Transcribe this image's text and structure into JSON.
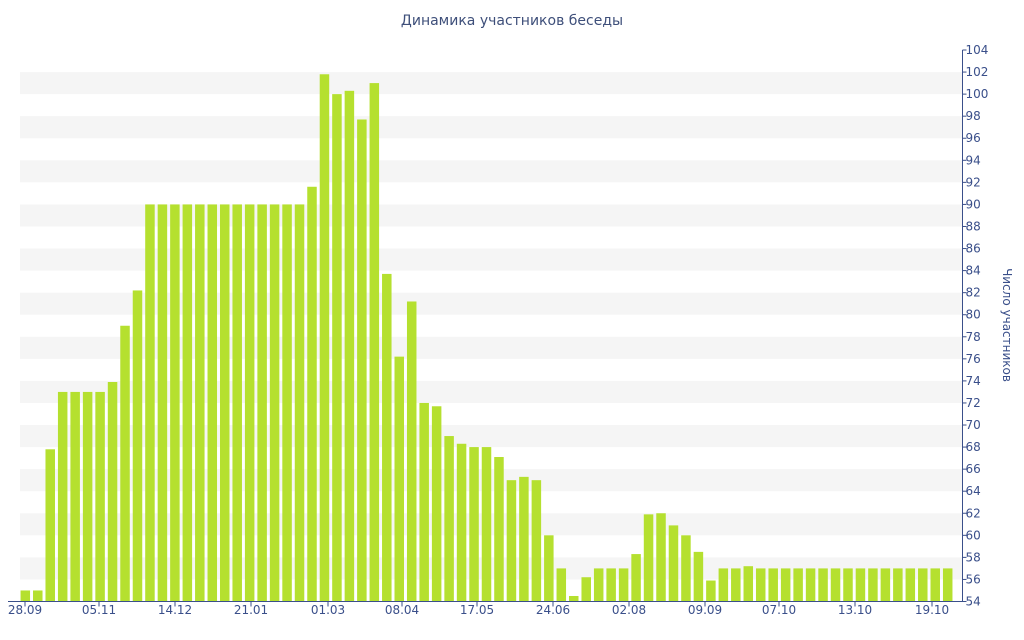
{
  "chart_data": {
    "type": "bar",
    "title": "Динамика участников беседы",
    "xlabel": "",
    "ylabel": "Число участников",
    "ylim": [
      54,
      104
    ],
    "y_ticks": [
      54,
      56,
      58,
      60,
      62,
      64,
      66,
      68,
      70,
      72,
      74,
      76,
      78,
      80,
      82,
      84,
      86,
      88,
      90,
      92,
      94,
      96,
      98,
      100,
      102,
      104
    ],
    "x_tick_labels": [
      "28.09",
      "05.11",
      "14.12",
      "21.01",
      "01.03",
      "08.04",
      "17.05",
      "24.06",
      "02.08",
      "09.09",
      "07.10",
      "13.10",
      "19.10"
    ],
    "y_axis_position": "right",
    "grid": "alternating horizontal bands",
    "bar_color": "#b5e02f",
    "values": [
      55,
      55,
      67.8,
      73,
      73,
      73,
      73,
      73.9,
      79,
      82.2,
      90,
      90,
      90,
      90,
      90,
      90,
      90,
      90,
      90,
      90,
      90,
      90,
      90,
      91.6,
      101.8,
      100,
      100.3,
      97.7,
      101,
      83.7,
      76.2,
      81.2,
      72,
      71.7,
      69,
      68.3,
      68,
      68,
      67.1,
      65,
      65.3,
      65,
      60,
      57,
      54.5,
      56.2,
      57,
      57,
      57,
      58.3,
      61.9,
      62,
      60.9,
      60,
      58.5,
      55.9,
      57,
      57,
      57.2,
      57,
      57,
      57,
      57,
      57,
      57,
      57,
      57,
      57,
      57,
      57,
      57,
      57,
      57,
      57,
      57
    ]
  }
}
